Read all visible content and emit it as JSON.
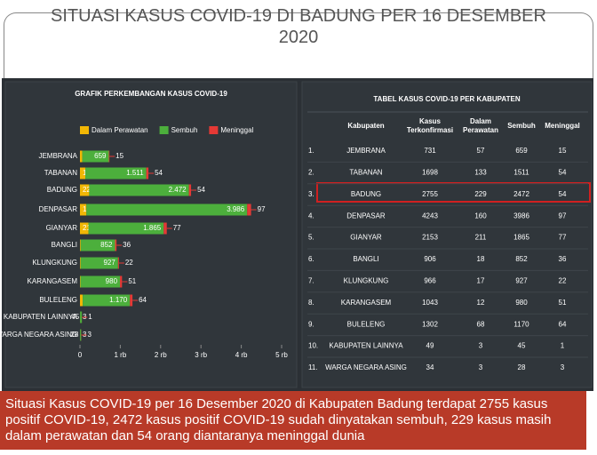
{
  "title": "SITUASI KASUS COVID-19 DI BADUNG PER 16 DESEMBER 2020",
  "chart_data": {
    "type": "stacked-hbar",
    "title": "GRAFIK PERKEMBANGAN KASUS COVID-19",
    "categories": [
      "JEMBRANA",
      "TABANAN",
      "BADUNG",
      "DENPASAR",
      "GIANYAR",
      "BANGLI",
      "KLUNGKUNG",
      "KARANGASEM",
      "BULELENG",
      "KABUPATEN LAINNYA",
      "WARGA NEGARA ASING"
    ],
    "series": [
      {
        "name": "Dalam Perawatan",
        "color": "#f2b705",
        "values": [
          57,
          133,
          229,
          160,
          211,
          18,
          17,
          12,
          68,
          3,
          3
        ]
      },
      {
        "name": "Sembuh",
        "color": "#4caf3c",
        "values": [
          659,
          1511,
          2472,
          3986,
          1865,
          852,
          927,
          980,
          1170,
          45,
          28
        ],
        "value_labels": [
          "659",
          "1.511",
          "2.472",
          "3.986",
          "1.865",
          "852",
          "927",
          "980",
          "1.170",
          "45",
          "28"
        ]
      },
      {
        "name": "Meninggal",
        "color": "#e53935",
        "values": [
          15,
          54,
          54,
          97,
          77,
          36,
          22,
          51,
          64,
          1,
          3
        ]
      }
    ],
    "xlim": [
      0,
      5000
    ],
    "xticks": [
      0,
      {
        "value": 1000,
        "label": "1 rb"
      },
      {
        "value": 2000,
        "label": "2 rb"
      },
      {
        "value": 3000,
        "label": "3 rb"
      },
      {
        "value": 4000,
        "label": "4 rb"
      },
      {
        "value": 5000,
        "label": "5 rb"
      }
    ]
  },
  "table": {
    "title": "TABEL KASUS COVID-19 PER KABUPATEN",
    "headers": [
      "Kabupaten",
      "Kasus Terkonfirmasi",
      "Dalam Perawatan",
      "Sembuh",
      "Meninggal"
    ],
    "rows": [
      [
        "1.",
        "JEMBRANA",
        731,
        57,
        659,
        15
      ],
      [
        "2.",
        "TABANAN",
        1698,
        133,
        1511,
        54
      ],
      [
        "3.",
        "BADUNG",
        2755,
        229,
        2472,
        54
      ],
      [
        "4.",
        "DENPASAR",
        4243,
        160,
        3986,
        97
      ],
      [
        "5.",
        "GIANYAR",
        2153,
        211,
        1865,
        77
      ],
      [
        "6.",
        "BANGLI",
        906,
        18,
        852,
        36
      ],
      [
        "7.",
        "KLUNGKUNG",
        966,
        17,
        927,
        22
      ],
      [
        "8.",
        "KARANGASEM",
        1043,
        12,
        980,
        51
      ],
      [
        "9.",
        "BULELENG",
        1302,
        68,
        1170,
        64
      ],
      [
        "10.",
        "KABUPATEN LAINNYA",
        49,
        3,
        45,
        1
      ],
      [
        "11.",
        "WARGA NEGARA ASING",
        34,
        3,
        28,
        3
      ]
    ]
  },
  "caption": "Situasi Kasus COVID-19 per 16 Desember 2020 di Kabupaten Badung terdapat 2755 kasus positif COVID-19, 2472 kasus positif COVID-19 sudah dinyatakan sembuh, 229 kasus masih dalam perawatan dan 54 orang diantaranya meninggal dunia"
}
